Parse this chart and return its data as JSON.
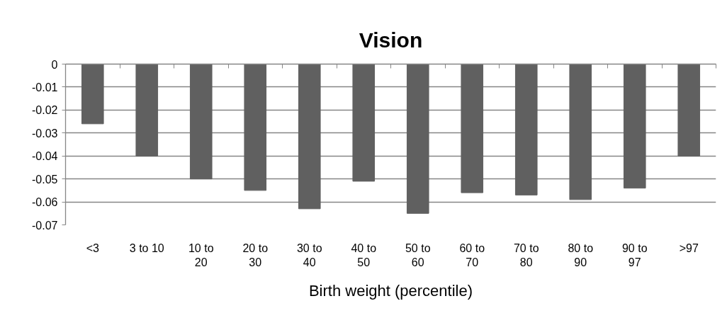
{
  "chart_data": {
    "type": "bar",
    "title": "Vision",
    "xlabel": "Birth weight (percentile)",
    "categories": [
      "<3",
      "3 to 10",
      "10 to 20",
      "20 to 30",
      "30 to 40",
      "40 to 50",
      "50 to 60",
      "60 to 70",
      "70 to 80",
      "80 to 90",
      "90 to 97",
      ">97"
    ],
    "values": [
      -0.026,
      -0.04,
      -0.05,
      -0.055,
      -0.063,
      -0.051,
      -0.065,
      -0.056,
      -0.057,
      -0.059,
      -0.054,
      -0.04
    ],
    "color": "#606060",
    "ylim": [
      -0.07,
      0
    ],
    "yticks": [
      0,
      -0.01,
      -0.02,
      -0.03,
      -0.04,
      -0.05,
      -0.06,
      -0.07
    ],
    "grid": "y"
  }
}
